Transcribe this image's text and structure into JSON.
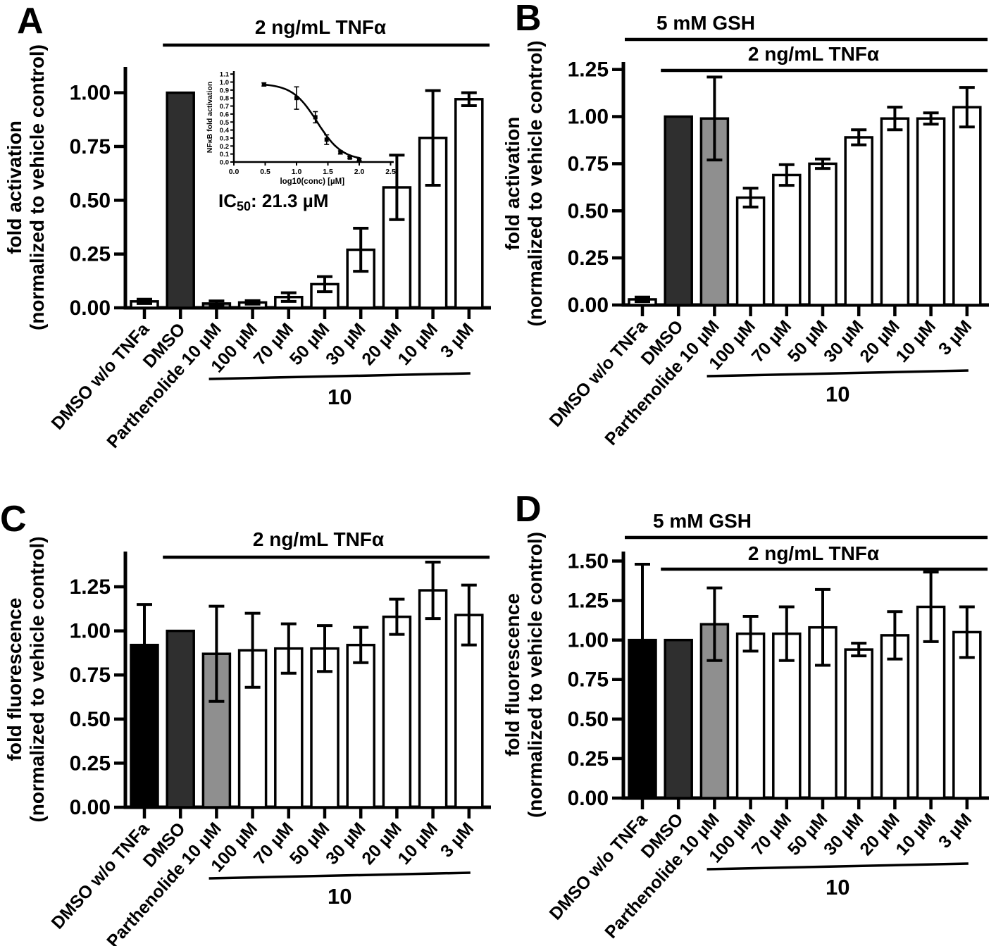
{
  "colors": {
    "background": "#ffffff",
    "axis": "#000000",
    "bar_white": "#ffffff",
    "bar_dark": "#2f2f2f",
    "bar_gray": "#8f8f8f",
    "bar_black": "#000000"
  },
  "chart_data": [
    {
      "type": "bar",
      "panel_label": "A",
      "headers": [
        {
          "label": "2 ng/mL TNFα",
          "from_index": 1
        }
      ],
      "ylabel": [
        "fold activation",
        "(normalized to vehicle control)"
      ],
      "yticks": [
        "0.00",
        "0.25",
        "0.50",
        "0.75",
        "1.00"
      ],
      "ylim": [
        0,
        1.12
      ],
      "categories": [
        "DMSO w/o TNFa",
        "DMSO",
        "Parthenolide 10 µM",
        "100 µM",
        "70 µM",
        "50 µM",
        "30 µM",
        "20 µM",
        "10 µM",
        "3 µM"
      ],
      "values": [
        0.03,
        1.0,
        0.02,
        0.025,
        0.05,
        0.11,
        0.27,
        0.56,
        0.79,
        0.97
      ],
      "errors": [
        0.01,
        0,
        0.012,
        0.008,
        0.02,
        0.035,
        0.1,
        0.15,
        0.22,
        0.03
      ],
      "fills": [
        "white",
        "dark",
        "gray",
        "white",
        "white",
        "white",
        "white",
        "white",
        "white",
        "white"
      ],
      "group": {
        "label": "10",
        "from": 3,
        "to": 9
      },
      "inset": {
        "type": "scatter",
        "ylabel": "NFκB fold activation",
        "xlabel": "log10(conc) [µM]",
        "yticks": [
          "0.0",
          "0.1",
          "0.2",
          "0.3",
          "0.4",
          "0.5",
          "0.6",
          "0.7",
          "0.8",
          "0.9",
          "1.0",
          "1.1"
        ],
        "xticks": [
          "0.0",
          "0.5",
          "1.0",
          "1.5",
          "2.0",
          "2.5"
        ],
        "x": [
          0.48,
          1.0,
          1.3,
          1.48,
          1.7,
          1.85,
          2.0
        ],
        "y": [
          0.97,
          0.8,
          0.56,
          0.28,
          0.12,
          0.055,
          0.03
        ],
        "yerr": [
          0.02,
          0.14,
          0.07,
          0.06,
          0.02,
          0.012,
          0.012
        ],
        "fit": {
          "top": 0.98,
          "bottom": 0.02,
          "logIC50": 1.33,
          "hillslope": 2.2
        },
        "ic50": {
          "prefix": "IC",
          "subscript": "50",
          "value_text": ": 21.3 µM"
        }
      }
    },
    {
      "type": "bar",
      "panel_label": "B",
      "headers": [
        {
          "label": "5 mM GSH",
          "from_index": 0
        },
        {
          "label": "2 ng/mL TNFα",
          "from_index": 1
        }
      ],
      "ylabel": [
        "fold activation",
        "(normalized to vehicle control)"
      ],
      "yticks": [
        "0.00",
        "0.25",
        "0.50",
        "0.75",
        "1.00",
        "1.25"
      ],
      "ylim": [
        0,
        1.29
      ],
      "categories": [
        "DMSO w/o TNFa",
        "DMSO",
        "Parthenolide 10 µM",
        "100 µM",
        "70 µM",
        "50 µM",
        "30 µM",
        "20 µM",
        "10 µM",
        "3 µM"
      ],
      "values": [
        0.03,
        1.0,
        0.99,
        0.57,
        0.69,
        0.75,
        0.89,
        0.99,
        0.99,
        1.05
      ],
      "errors": [
        0.012,
        0,
        0.22,
        0.05,
        0.055,
        0.025,
        0.04,
        0.06,
        0.03,
        0.105
      ],
      "fills": [
        "white",
        "dark",
        "gray",
        "white",
        "white",
        "white",
        "white",
        "white",
        "white",
        "white"
      ],
      "group": {
        "label": "10",
        "from": 3,
        "to": 9
      }
    },
    {
      "type": "bar",
      "panel_label": "C",
      "headers": [
        {
          "label": "2 ng/mL TNFα",
          "from_index": 1
        }
      ],
      "ylabel": [
        "fold fluorescence",
        "(normalized to vehicle control)"
      ],
      "yticks": [
        "0.00",
        "0.25",
        "0.50",
        "0.75",
        "1.00",
        "1.25"
      ],
      "ylim": [
        0,
        1.45
      ],
      "categories": [
        "DMSO w/o TNFa",
        "DMSO",
        "Parthenolide 10 µM",
        "100 µM",
        "70 µM",
        "50 µM",
        "30 µM",
        "20 µM",
        "10 µM",
        "3 µM"
      ],
      "values": [
        0.92,
        1.0,
        0.87,
        0.89,
        0.9,
        0.9,
        0.92,
        1.08,
        1.23,
        1.09
      ],
      "errors": [
        0.23,
        0,
        0.27,
        0.21,
        0.14,
        0.13,
        0.1,
        0.1,
        0.16,
        0.17
      ],
      "fills": [
        "black",
        "dark",
        "gray",
        "white",
        "white",
        "white",
        "white",
        "white",
        "white",
        "white"
      ],
      "group": {
        "label": "10",
        "from": 3,
        "to": 9
      }
    },
    {
      "type": "bar",
      "panel_label": "D",
      "headers": [
        {
          "label": "5 mM GSH",
          "from_index": 0
        },
        {
          "label": "2 ng/mL TNFα",
          "from_index": 1
        }
      ],
      "ylabel": [
        "fold fluorescence",
        "(normalized to vehicle control)"
      ],
      "yticks": [
        "0.00",
        "0.25",
        "0.50",
        "0.75",
        "1.00",
        "1.25",
        "1.50"
      ],
      "ylim": [
        0,
        1.56
      ],
      "categories": [
        "DMSO w/o TNFa",
        "DMSO",
        "Parthenolide 10 µM",
        "100 µM",
        "70 µM",
        "50 µM",
        "30 µM",
        "20 µM",
        "10 µM",
        "3 µM"
      ],
      "values": [
        1.0,
        1.0,
        1.1,
        1.04,
        1.04,
        1.08,
        0.94,
        1.03,
        1.21,
        1.05
      ],
      "errors": [
        0.48,
        0,
        0.23,
        0.11,
        0.17,
        0.24,
        0.04,
        0.15,
        0.22,
        0.16
      ],
      "fills": [
        "black",
        "dark",
        "gray",
        "white",
        "white",
        "white",
        "white",
        "white",
        "white",
        "white"
      ],
      "group": {
        "label": "10",
        "from": 3,
        "to": 9
      }
    }
  ]
}
